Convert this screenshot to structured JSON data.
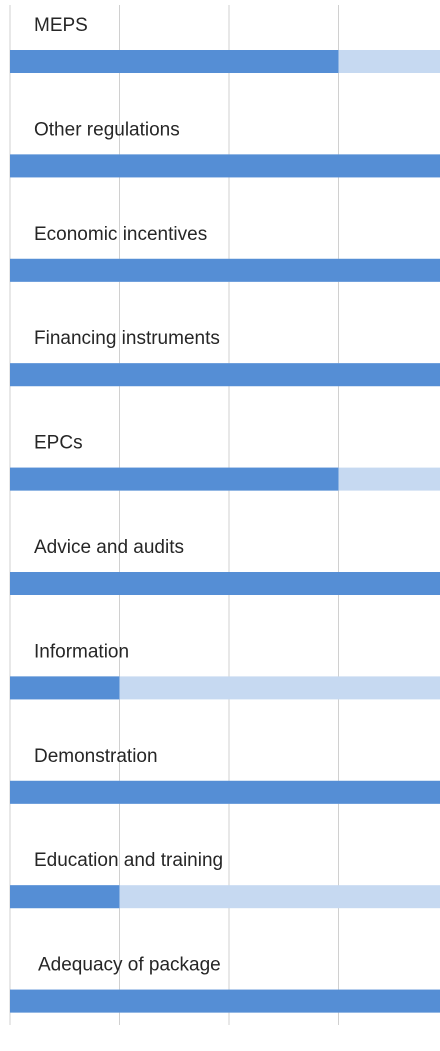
{
  "chart_data": {
    "type": "bar",
    "orientation": "horizontal",
    "categories": [
      "MEPS",
      "Other regulations",
      "Economic incentives",
      "Financing instruments",
      "EPCs",
      "Advice and audits",
      "Information",
      "Demonstration",
      "Education and training",
      "Adequacy of package"
    ],
    "values": [
      3,
      4,
      4,
      4,
      3,
      4,
      1,
      4,
      1,
      4
    ],
    "color": "#558ed5",
    "track_color": "#c6d9f1",
    "xlim": [
      0,
      4
    ],
    "xticks": [
      0,
      1,
      2,
      3,
      4
    ],
    "grid": true
  }
}
